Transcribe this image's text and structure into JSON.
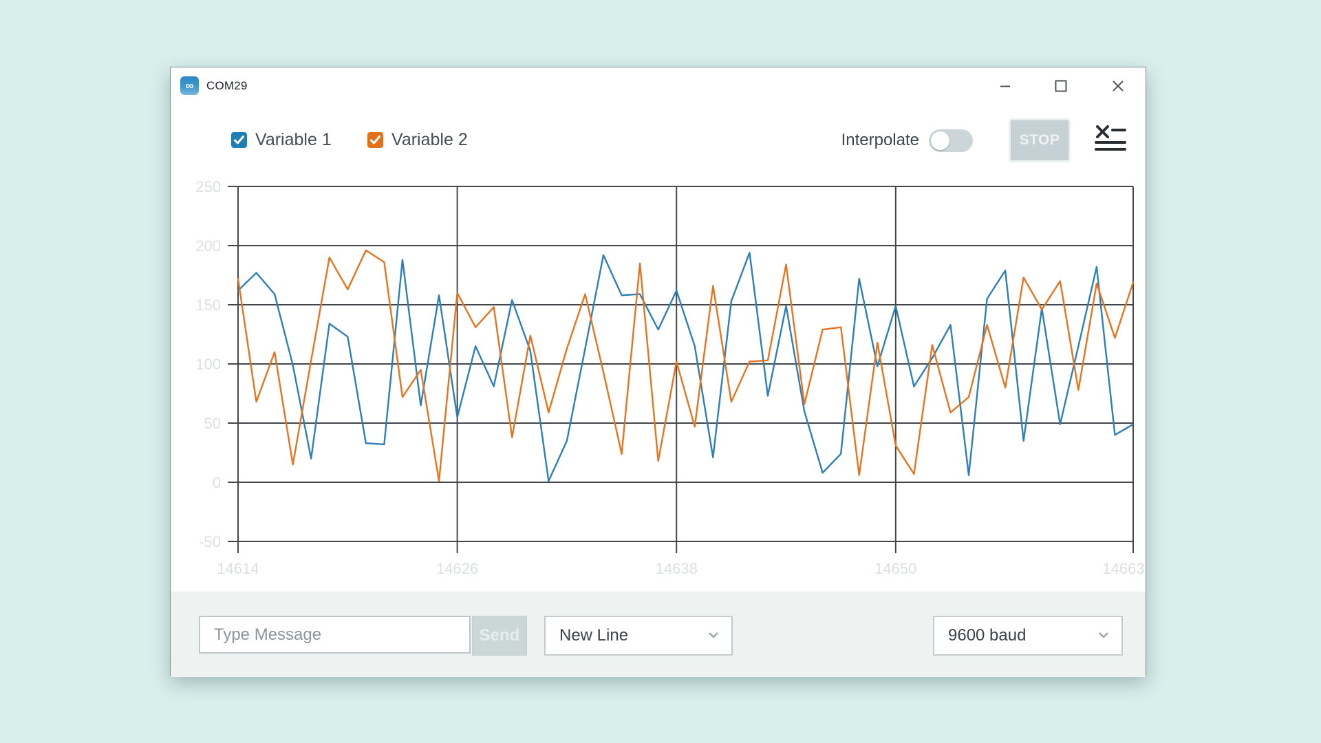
{
  "window": {
    "title": "COM29"
  },
  "icons": {
    "app_icon": "∞",
    "minimize_icon": "–",
    "maximize_icon": "□",
    "close_icon": "×",
    "clear_plot_icon": "x-with-list-lines",
    "chevron_down_icon": "⌄",
    "checkmark_icon": "✓"
  },
  "legend": {
    "items": [
      {
        "label": "Variable 1",
        "color": "#1f7fb4",
        "checked": true
      },
      {
        "label": "Variable 2",
        "color": "#e2711c",
        "checked": true
      }
    ]
  },
  "toolbar": {
    "interpolate_label": "Interpolate",
    "interpolate_enabled": false,
    "stop_label": "STOP"
  },
  "chart_data": {
    "type": "line",
    "xlim": [
      14614,
      14663
    ],
    "ylim": [
      -50,
      250
    ],
    "x_ticks": [
      14614,
      14626,
      14638,
      14650,
      14663
    ],
    "y_ticks": [
      250,
      200,
      150,
      100,
      50,
      0,
      -50
    ],
    "grid": true,
    "grid_color": "#43474b",
    "tick_label_color": "#dbe0e1",
    "legend_position": "top-left",
    "x_step": 1,
    "series": [
      {
        "name": "Variable 1",
        "color": "#2d7fb8",
        "values": [
          162,
          177,
          159,
          99,
          20,
          134,
          123,
          33,
          32,
          188,
          65,
          158,
          55,
          115,
          81,
          154,
          111,
          1,
          35,
          113,
          192,
          158,
          159,
          129,
          162,
          115,
          21,
          153,
          194,
          73,
          149,
          60,
          8,
          24,
          172,
          98,
          149,
          81,
          105,
          133,
          6,
          155,
          179,
          35,
          147,
          49,
          115,
          182,
          40,
          49
        ]
      },
      {
        "name": "Variable 2",
        "color": "#e8731e",
        "values": [
          172,
          68,
          110,
          15,
          103,
          190,
          163,
          196,
          186,
          72,
          95,
          1,
          160,
          131,
          148,
          38,
          124,
          59,
          113,
          159,
          93,
          24,
          185,
          18,
          102,
          47,
          166,
          68,
          102,
          103,
          184,
          66,
          129,
          131,
          6,
          118,
          31,
          7,
          116,
          59,
          72,
          133,
          80,
          173,
          146,
          170,
          78,
          168,
          122,
          169
        ]
      }
    ]
  },
  "bottom_bar": {
    "message_placeholder": "Type Message",
    "send_label": "Send",
    "line_ending_value": "New Line",
    "baud_value": "9600 baud"
  },
  "colors": {
    "page_background": "#d9efec",
    "window_background": "#ffffff",
    "bottom_bar_background": "#eef2f1",
    "stop_button_background": "#c5d1d4",
    "toggle_background": "#ccd6d8"
  }
}
